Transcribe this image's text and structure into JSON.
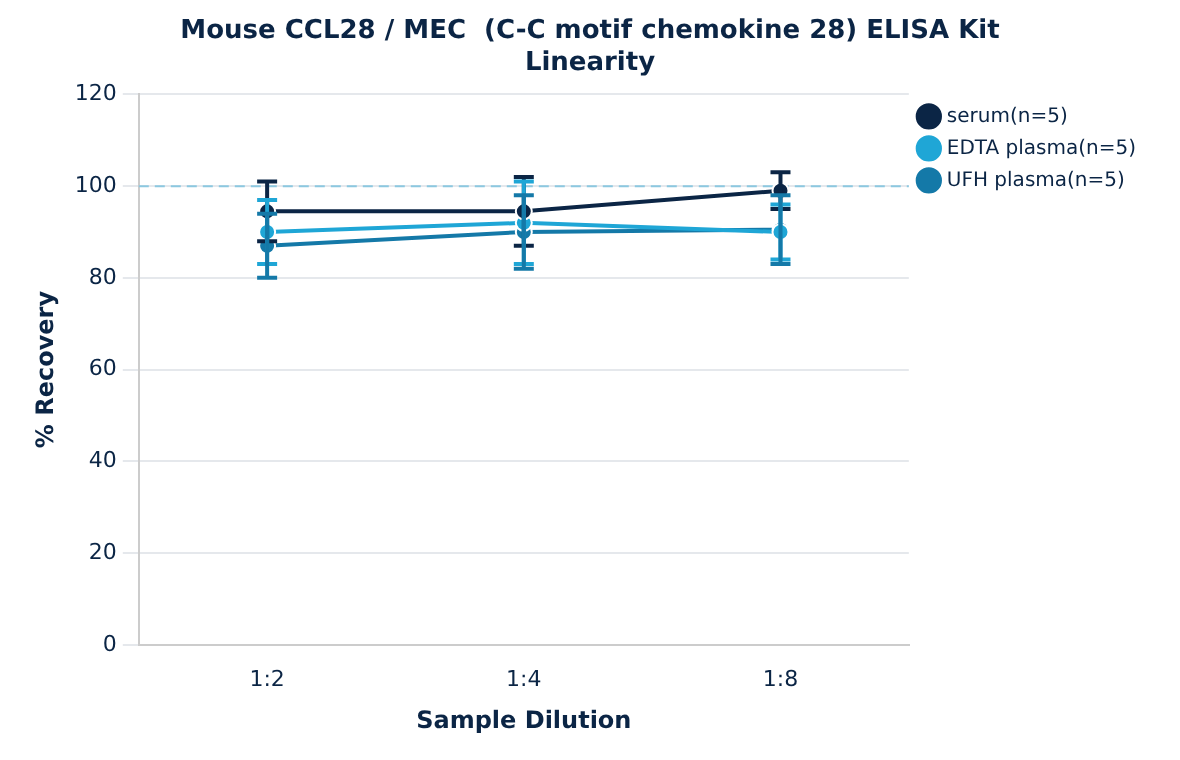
{
  "chart_data": {
    "type": "line",
    "title": [
      "Mouse CCL28 / MEC  (C-C motif chemokine 28) ELISA Kit",
      "Linearity"
    ],
    "xlabel": "Sample Dilution",
    "ylabel": "% Recovery",
    "categories": [
      "1:2",
      "1:4",
      "1:8"
    ],
    "series": [
      {
        "name": "serum(n=5)",
        "color": "#0b2545",
        "values": [
          94.5,
          94.5,
          99
        ],
        "errors": [
          6.5,
          7.5,
          4
        ]
      },
      {
        "name": "EDTA plasma(n=5)",
        "color": "#1fa6d6",
        "values": [
          90,
          92,
          90
        ],
        "errors": [
          7,
          9,
          6
        ]
      },
      {
        "name": "UFH plasma(n=5)",
        "color": "#1479a8",
        "values": [
          87,
          90,
          90.5
        ],
        "errors": [
          7,
          8,
          7.5
        ]
      }
    ],
    "ylim": [
      0,
      120
    ],
    "yticks": [
      0,
      20,
      40,
      60,
      80,
      100,
      120
    ],
    "grid": "y",
    "legend": "top right",
    "marker": "circle",
    "line_style": "solid",
    "ref_lines": [
      {
        "axis": "y",
        "value": 100,
        "color": "#8cc8e0",
        "line_style": "dashed"
      }
    ]
  }
}
